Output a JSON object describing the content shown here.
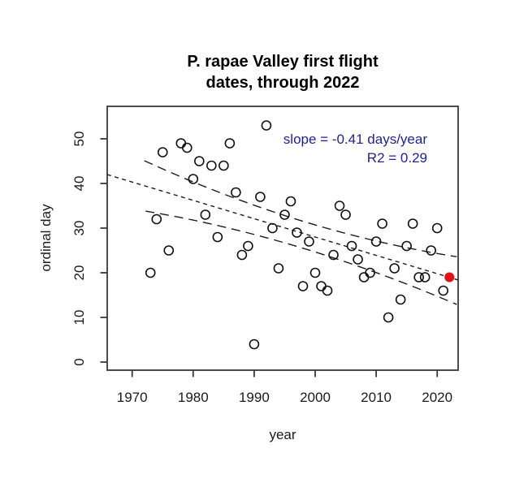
{
  "chart_data": {
    "type": "scatter",
    "title_line1": "P. rapae Valley first flight",
    "title_line2": "dates, through 2022",
    "xlabel": "year",
    "ylabel": "ordinal day",
    "x_ticks": [
      1970,
      1980,
      1990,
      2000,
      2010,
      2020
    ],
    "y_ticks": [
      0,
      10,
      20,
      30,
      40,
      50
    ],
    "xlim": [
      1965.9,
      2023.4
    ],
    "ylim": [
      -1.8,
      57.3
    ],
    "grid": false,
    "annotation": {
      "slope_label": "slope = -0.41 days/year",
      "r2_label": "R2 = 0.29",
      "color": "#1f1f9f"
    },
    "points": [
      [
        1973,
        20
      ],
      [
        1974,
        32
      ],
      [
        1975,
        47
      ],
      [
        1976,
        25
      ],
      [
        1978,
        49
      ],
      [
        1979,
        48
      ],
      [
        1980,
        41
      ],
      [
        1981,
        45
      ],
      [
        1982,
        33
      ],
      [
        1983,
        44
      ],
      [
        1984,
        28
      ],
      [
        1985,
        44
      ],
      [
        1986,
        49
      ],
      [
        1987,
        38
      ],
      [
        1988,
        24
      ],
      [
        1989,
        26
      ],
      [
        1990,
        4
      ],
      [
        1991,
        37
      ],
      [
        1992,
        53
      ],
      [
        1993,
        30
      ],
      [
        1994,
        21
      ],
      [
        1995,
        33
      ],
      [
        1996,
        36
      ],
      [
        1997,
        29
      ],
      [
        1998,
        17
      ],
      [
        1999,
        27
      ],
      [
        2000,
        20
      ],
      [
        2001,
        17
      ],
      [
        2002,
        16
      ],
      [
        2003,
        24
      ],
      [
        2004,
        35
      ],
      [
        2005,
        33
      ],
      [
        2006,
        26
      ],
      [
        2007,
        23
      ],
      [
        2008,
        19
      ],
      [
        2009,
        20
      ],
      [
        2010,
        27
      ],
      [
        2011,
        31
      ],
      [
        2012,
        10
      ],
      [
        2013,
        21
      ],
      [
        2014,
        14
      ],
      [
        2015,
        26
      ],
      [
        2016,
        31
      ],
      [
        2017,
        19
      ],
      [
        2018,
        19
      ],
      [
        2019,
        25
      ],
      [
        2020,
        30
      ],
      [
        2021,
        16
      ]
    ],
    "highlight_point": {
      "year": 2022,
      "day": 19,
      "color": "#e11212"
    },
    "trend": {
      "slope_days_per_year": -0.41,
      "r2": 0.29,
      "line_endpoints": [
        [
          1965.9,
          42.0
        ],
        [
          2023.4,
          18.4
        ]
      ]
    },
    "confidence_band": {
      "upper": [
        [
          1972.0,
          45.1
        ],
        [
          1997.6,
          31.7
        ],
        [
          2023.2,
          23.6
        ]
      ],
      "lower": [
        [
          1972.2,
          33.8
        ],
        [
          1997.5,
          25.7
        ],
        [
          2023.2,
          12.9
        ]
      ]
    }
  }
}
